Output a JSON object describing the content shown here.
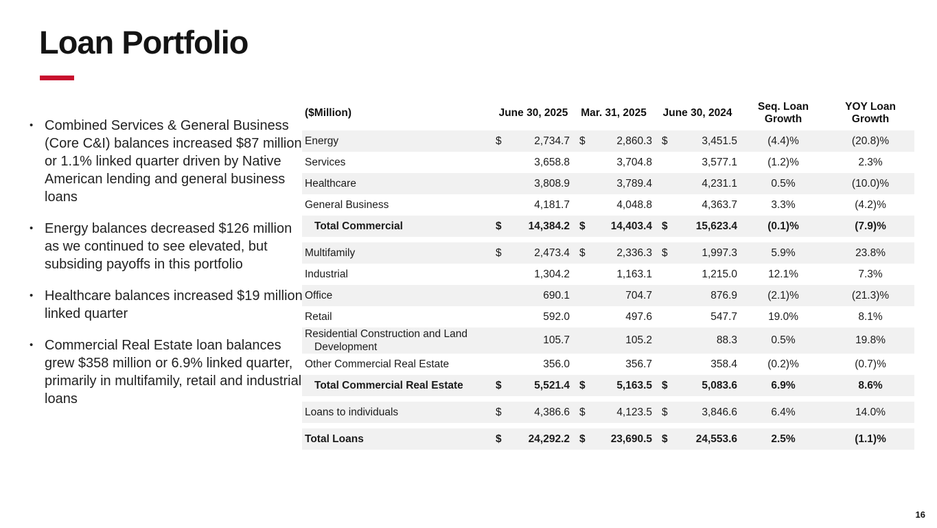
{
  "slide": {
    "title": "Loan Portfolio",
    "page_number": "16",
    "accent_color": "#C8102E"
  },
  "bullets": [
    "Combined Services & General Business (Core C&I) balances increased $87 million or 1.1% linked quarter driven by Native American lending and general business loans",
    "Energy balances decreased $126 million as we continued to see elevated, but subsiding payoffs in this portfolio",
    "Healthcare balances increased $19 million linked quarter",
    "Commercial Real Estate loan balances grew $358 million or 6.9% linked quarter, primarily in multifamily, retail and industrial loans"
  ],
  "bullet_marker": "•",
  "table": {
    "unit_label": "($Million)",
    "columns": [
      "June 30, 2025",
      "Mar. 31, 2025",
      "June 30, 2024",
      "Seq. Loan Growth",
      "YOY Loan Growth"
    ],
    "rows": [
      {
        "label": "Energy",
        "d": "$",
        "v1": "2,734.7",
        "v2": "2,860.3",
        "v3": "3,451.5",
        "seq": "(4.4)%",
        "yoy": "(20.8)%",
        "shaded": true,
        "bold": false,
        "indent": false,
        "gap_before": false
      },
      {
        "label": "Services",
        "d": "",
        "v1": "3,658.8",
        "v2": "3,704.8",
        "v3": "3,577.1",
        "seq": "(1.2)%",
        "yoy": "2.3%",
        "shaded": false,
        "bold": false,
        "indent": false,
        "gap_before": false
      },
      {
        "label": "Healthcare",
        "d": "",
        "v1": "3,808.9",
        "v2": "3,789.4",
        "v3": "4,231.1",
        "seq": "0.5%",
        "yoy": "(10.0)%",
        "shaded": true,
        "bold": false,
        "indent": false,
        "gap_before": false
      },
      {
        "label": "General Business",
        "d": "",
        "v1": "4,181.7",
        "v2": "4,048.8",
        "v3": "4,363.7",
        "seq": "3.3%",
        "yoy": "(4.2)%",
        "shaded": false,
        "bold": false,
        "indent": false,
        "gap_before": false
      },
      {
        "label": "Total Commercial",
        "d": "$",
        "v1": "14,384.2",
        "v2": "14,403.4",
        "v3": "15,623.4",
        "seq": "(0.1)%",
        "yoy": "(7.9)%",
        "shaded": true,
        "bold": true,
        "indent": true,
        "gap_before": false
      },
      {
        "label": "Multifamily",
        "d": "$",
        "v1": "2,473.4",
        "v2": "2,336.3",
        "v3": "1,997.3",
        "seq": "5.9%",
        "yoy": "23.8%",
        "shaded": true,
        "bold": false,
        "indent": false,
        "gap_before": true
      },
      {
        "label": "Industrial",
        "d": "",
        "v1": "1,304.2",
        "v2": "1,163.1",
        "v3": "1,215.0",
        "seq": "12.1%",
        "yoy": "7.3%",
        "shaded": false,
        "bold": false,
        "indent": false,
        "gap_before": false
      },
      {
        "label": "Office",
        "d": "",
        "v1": "690.1",
        "v2": "704.7",
        "v3": "876.9",
        "seq": "(2.1)%",
        "yoy": "(21.3)%",
        "shaded": true,
        "bold": false,
        "indent": false,
        "gap_before": false
      },
      {
        "label": "Retail",
        "d": "",
        "v1": "592.0",
        "v2": "497.6",
        "v3": "547.7",
        "seq": "19.0%",
        "yoy": "8.1%",
        "shaded": false,
        "bold": false,
        "indent": false,
        "gap_before": false
      },
      {
        "label": "Residential Construction and Land Development",
        "d": "",
        "v1": "105.7",
        "v2": "105.2",
        "v3": "88.3",
        "seq": "0.5%",
        "yoy": "19.8%",
        "shaded": true,
        "bold": false,
        "indent": false,
        "gap_before": false
      },
      {
        "label": "Other Commercial Real Estate",
        "d": "",
        "v1": "356.0",
        "v2": "356.7",
        "v3": "358.4",
        "seq": "(0.2)%",
        "yoy": "(0.7)%",
        "shaded": false,
        "bold": false,
        "indent": false,
        "gap_before": false
      },
      {
        "label": "Total Commercial Real Estate",
        "d": "$",
        "v1": "5,521.4",
        "v2": "5,163.5",
        "v3": "5,083.6",
        "seq": "6.9%",
        "yoy": "8.6%",
        "shaded": true,
        "bold": true,
        "indent": true,
        "gap_before": false
      },
      {
        "label": "Loans to individuals",
        "d": "$",
        "v1": "4,386.6",
        "v2": "4,123.5",
        "v3": "3,846.6",
        "seq": "6.4%",
        "yoy": "14.0%",
        "shaded": true,
        "bold": false,
        "indent": false,
        "gap_before": true
      },
      {
        "label": "Total Loans",
        "d": "$",
        "v1": "24,292.2",
        "v2": "23,690.5",
        "v3": "24,553.6",
        "seq": "2.5%",
        "yoy": "(1.1)%",
        "shaded": true,
        "bold": true,
        "indent": false,
        "gap_before": true
      }
    ]
  }
}
